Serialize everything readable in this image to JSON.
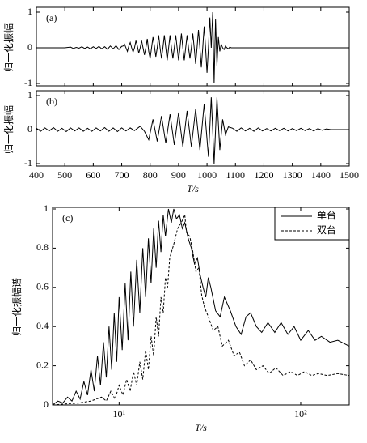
{
  "chart_data": [
    {
      "type": "line",
      "annotation": "(a)",
      "ylabel": "归一化振幅",
      "xlim": [
        400,
        1500
      ],
      "ylim": [
        -1,
        1
      ],
      "yticks": [
        -1,
        0,
        1
      ],
      "color": "#000000",
      "x": [
        400,
        500,
        520,
        530,
        540,
        550,
        560,
        570,
        580,
        590,
        600,
        610,
        620,
        630,
        640,
        650,
        660,
        670,
        680,
        690,
        700,
        705,
        710,
        715,
        720,
        725,
        730,
        735,
        740,
        745,
        750,
        755,
        760,
        765,
        770,
        775,
        780,
        785,
        790,
        795,
        800,
        805,
        810,
        815,
        820,
        825,
        830,
        835,
        840,
        845,
        850,
        855,
        860,
        865,
        870,
        875,
        880,
        885,
        890,
        895,
        900,
        905,
        910,
        915,
        920,
        925,
        930,
        935,
        940,
        945,
        950,
        955,
        960,
        965,
        970,
        975,
        980,
        985,
        990,
        995,
        1000,
        1005,
        1010,
        1015,
        1020,
        1025,
        1030,
        1035,
        1040,
        1045,
        1050,
        1055,
        1060,
        1065,
        1070,
        1075,
        1080,
        1085,
        1090,
        1100,
        1500
      ],
      "values": [
        0,
        0,
        0.02,
        -0.02,
        0.01,
        -0.01,
        0.03,
        -0.02,
        0.02,
        -0.03,
        0.03,
        -0.02,
        0.04,
        -0.03,
        0.03,
        -0.04,
        0.05,
        -0.03,
        0.06,
        -0.05,
        0.04,
        0.05,
        0.1,
        0,
        -0.1,
        0.05,
        0.15,
        0,
        -0.12,
        0,
        0.2,
        0.05,
        -0.15,
        0,
        0.2,
        0,
        -0.2,
        0,
        0.25,
        -0.1,
        -0.3,
        0,
        0.3,
        0.05,
        -0.25,
        0,
        0.35,
        0,
        -0.3,
        0,
        0.35,
        0,
        -0.35,
        0,
        0.35,
        0,
        -0.3,
        0,
        0.35,
        0,
        -0.35,
        0,
        0.4,
        0,
        -0.35,
        0,
        0.35,
        0,
        -0.3,
        0,
        0.4,
        0,
        -0.45,
        0,
        0.5,
        0,
        -0.55,
        0,
        0.6,
        0,
        -0.7,
        0,
        0.85,
        0,
        1,
        -1,
        0.8,
        -0.5,
        0.3,
        -0.1,
        0.1,
        0,
        -0.05,
        0.05,
        0,
        -0.03,
        0.02,
        0,
        0,
        0,
        0
      ]
    },
    {
      "type": "line",
      "annotation": "(b)",
      "ylabel": "归一化振幅",
      "xlabel": "T/s",
      "xlim": [
        400,
        1500
      ],
      "xticks": [
        400,
        500,
        600,
        700,
        800,
        900,
        1000,
        1100,
        1200,
        1300,
        1400,
        1500
      ],
      "ylim": [
        -1,
        1
      ],
      "yticks": [
        -1,
        0,
        1
      ],
      "color": "#000000",
      "x": [
        400,
        415,
        430,
        445,
        460,
        475,
        490,
        505,
        520,
        535,
        550,
        565,
        580,
        595,
        610,
        625,
        640,
        655,
        670,
        685,
        700,
        715,
        730,
        745,
        765,
        780,
        795,
        810,
        825,
        840,
        855,
        870,
        885,
        900,
        915,
        930,
        945,
        960,
        975,
        990,
        1005,
        1015,
        1025,
        1035,
        1045,
        1055,
        1065,
        1075,
        1090,
        1105,
        1120,
        1135,
        1150,
        1165,
        1180,
        1195,
        1210,
        1225,
        1240,
        1255,
        1270,
        1285,
        1300,
        1315,
        1330,
        1345,
        1360,
        1375,
        1390,
        1405,
        1420,
        1435,
        1500
      ],
      "values": [
        0.04,
        -0.05,
        0.05,
        -0.04,
        0.06,
        -0.05,
        0.04,
        -0.06,
        0.05,
        -0.04,
        0.05,
        -0.05,
        0.04,
        -0.05,
        0.05,
        -0.04,
        0.06,
        -0.05,
        0.05,
        -0.06,
        0.05,
        -0.04,
        0.05,
        -0.03,
        0.1,
        -0.05,
        -0.3,
        0.3,
        -0.35,
        0.4,
        -0.4,
        0.45,
        -0.45,
        0.5,
        -0.5,
        0.55,
        -0.5,
        0.6,
        -0.6,
        0.75,
        -0.8,
        0.95,
        -1,
        0.95,
        -0.6,
        0.3,
        -0.15,
        0.08,
        0.04,
        -0.05,
        0.05,
        -0.04,
        0.04,
        -0.05,
        0.05,
        -0.04,
        0.03,
        -0.04,
        0.04,
        -0.03,
        0.04,
        -0.04,
        0.03,
        -0.03,
        0.04,
        -0.03,
        0.03,
        -0.04,
        0.03,
        -0.02,
        0.02,
        0,
        0
      ]
    },
    {
      "type": "line",
      "annotation": "(c)",
      "ylabel": "归一化振幅谱",
      "xlabel": "T/s",
      "log_x": true,
      "xlim": [
        4.3,
        185
      ],
      "xticks": [
        {
          "value": 10,
          "label": "10¹"
        },
        {
          "value": 100,
          "label": "10²"
        }
      ],
      "ylim": [
        0,
        1
      ],
      "yticks": [
        0,
        0.2,
        0.4,
        0.6,
        0.8,
        1
      ],
      "legend": "upper right",
      "series": [
        {
          "name": "单台",
          "color": "#000000",
          "dash": "solid",
          "x": [
            4.3,
            4.6,
            4.9,
            5.2,
            5.5,
            5.8,
            6.1,
            6.4,
            6.7,
            7.0,
            7.3,
            7.6,
            7.9,
            8.2,
            8.5,
            8.8,
            9.1,
            9.4,
            9.7,
            10,
            10.4,
            10.8,
            11.2,
            11.6,
            12,
            12.5,
            13,
            13.5,
            14,
            14.5,
            15,
            15.5,
            16,
            16.5,
            17,
            17.5,
            18,
            18.7,
            19.4,
            20,
            20.7,
            21.5,
            22.3,
            23,
            24,
            25,
            26,
            27,
            28,
            29,
            30,
            31,
            32,
            34,
            36,
            38,
            41,
            44,
            47,
            50,
            53,
            57,
            61,
            66,
            72,
            78,
            85,
            92,
            100,
            110,
            120,
            130,
            145,
            160,
            185
          ],
          "values": [
            0,
            0.02,
            0.01,
            0.04,
            0.02,
            0.07,
            0.03,
            0.12,
            0.05,
            0.18,
            0.07,
            0.25,
            0.1,
            0.32,
            0.14,
            0.4,
            0.18,
            0.47,
            0.22,
            0.55,
            0.28,
            0.62,
            0.33,
            0.68,
            0.4,
            0.74,
            0.47,
            0.8,
            0.55,
            0.85,
            0.62,
            0.9,
            0.7,
            0.94,
            0.78,
            0.97,
            0.86,
            1,
            0.93,
            1,
            0.95,
            0.97,
            0.9,
            0.93,
            0.85,
            0.8,
            0.72,
            0.75,
            0.66,
            0.6,
            0.55,
            0.65,
            0.6,
            0.48,
            0.45,
            0.55,
            0.48,
            0.4,
            0.36,
            0.45,
            0.47,
            0.4,
            0.37,
            0.42,
            0.37,
            0.42,
            0.36,
            0.4,
            0.33,
            0.38,
            0.33,
            0.35,
            0.32,
            0.33,
            0.3
          ]
        },
        {
          "name": "双台",
          "color": "#000000",
          "dash": "dashed",
          "x": [
            4.3,
            5,
            6,
            7,
            8,
            8.5,
            9,
            9.5,
            10,
            10.5,
            11,
            11.5,
            12,
            12.5,
            13,
            13.5,
            14,
            14.5,
            15,
            15.5,
            16,
            16.5,
            17,
            17.5,
            18,
            18.5,
            19,
            20,
            21,
            22,
            23,
            23.5,
            24.5,
            25.5,
            26.5,
            27.5,
            28.5,
            29.5,
            31,
            33,
            35,
            37,
            40,
            43,
            46,
            49,
            53,
            57,
            62,
            67,
            73,
            80,
            88,
            96,
            105,
            115,
            125,
            140,
            160,
            185
          ],
          "values": [
            0,
            0.005,
            0.01,
            0.02,
            0.04,
            0.02,
            0.07,
            0.03,
            0.1,
            0.05,
            0.13,
            0.07,
            0.17,
            0.1,
            0.22,
            0.13,
            0.28,
            0.18,
            0.35,
            0.25,
            0.45,
            0.35,
            0.55,
            0.47,
            0.65,
            0.6,
            0.75,
            0.82,
            0.9,
            0.93,
            0.97,
            0.88,
            0.86,
            0.78,
            0.68,
            0.7,
            0.56,
            0.5,
            0.45,
            0.38,
            0.4,
            0.3,
            0.33,
            0.25,
            0.27,
            0.2,
            0.23,
            0.18,
            0.2,
            0.16,
            0.19,
            0.15,
            0.17,
            0.15,
            0.17,
            0.15,
            0.16,
            0.15,
            0.16,
            0.15
          ]
        }
      ]
    }
  ]
}
